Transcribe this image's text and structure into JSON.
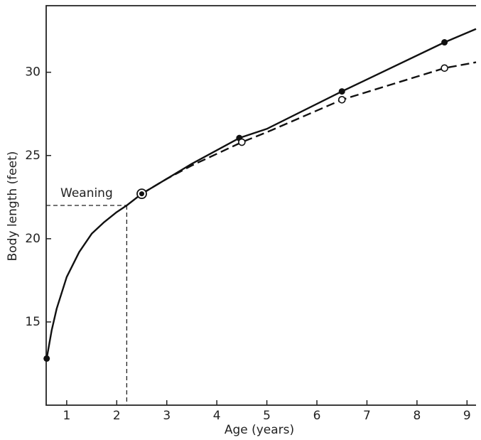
{
  "chart_data": {
    "type": "line",
    "xlabel": "Age (years)",
    "ylabel": "Body length (feet)",
    "xlim": [
      0.59,
      9.18
    ],
    "ylim": [
      10,
      34
    ],
    "xticks": [
      1,
      2,
      3,
      4,
      5,
      6,
      7,
      8,
      9
    ],
    "yticks": [
      15,
      20,
      25,
      30
    ],
    "annotation": {
      "text": "Weaning",
      "x": 2.2,
      "y": 22
    },
    "series": [
      {
        "color": "#111111",
        "dash": false,
        "marker": "none",
        "x": [
          0.6,
          0.7,
          0.8,
          1.0,
          1.25,
          1.5,
          1.75,
          2.0,
          2.2,
          2.5,
          3.0,
          3.5,
          4.45,
          5.0,
          6.5,
          8.55,
          9.18
        ],
        "values": [
          12.8,
          14.5,
          15.8,
          17.7,
          19.2,
          20.3,
          21.0,
          21.6,
          22.0,
          22.7,
          23.6,
          24.5,
          26.05,
          26.6,
          28.85,
          31.8,
          32.6
        ]
      },
      {
        "color": "#111111",
        "dash": true,
        "marker": "none",
        "x": [
          2.5,
          3.0,
          3.5,
          4.5,
          5.0,
          6.5,
          8.55,
          9.18
        ],
        "values": [
          22.7,
          23.6,
          24.4,
          25.8,
          26.4,
          28.35,
          30.25,
          30.6
        ]
      },
      {
        "color": "#111111",
        "dash": false,
        "marker": "filled",
        "x": [
          0.6,
          4.45,
          6.5,
          8.55
        ],
        "values": [
          12.8,
          26.05,
          28.85,
          31.8
        ]
      },
      {
        "color": "#111111",
        "dash": false,
        "marker": "open",
        "x": [
          4.5,
          6.5,
          8.55
        ],
        "values": [
          25.8,
          28.35,
          30.25
        ]
      },
      {
        "color": "#111111",
        "dash": false,
        "marker": "ringed",
        "x": [
          2.5
        ],
        "values": [
          22.7
        ]
      }
    ]
  }
}
